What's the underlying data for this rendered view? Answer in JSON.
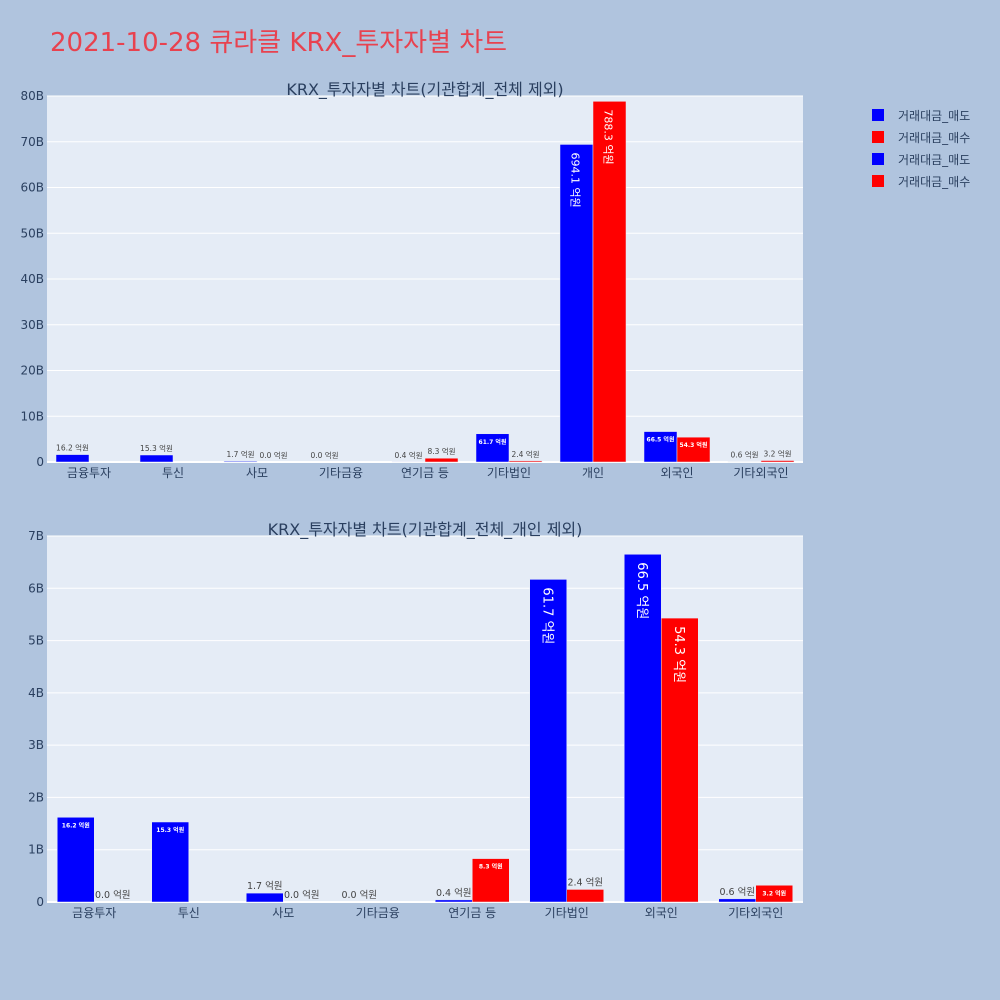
{
  "page": {
    "title": "2021-10-28 큐라클 KRX_투자자별 차트"
  },
  "legend": [
    {
      "label": "거래대금_매도",
      "color": "#0000ff"
    },
    {
      "label": "거래대금_매수",
      "color": "#ff0000"
    },
    {
      "label": "거래대금_매도",
      "color": "#0000ff"
    },
    {
      "label": "거래대금_매수",
      "color": "#ff0000"
    }
  ],
  "chart_data": [
    {
      "type": "bar",
      "title": "KRX_투자자별 차트(기관합계_전체 제외)",
      "categories": [
        "금융투자",
        "투신",
        "사모",
        "기타금융",
        "연기금 등",
        "기타법인",
        "개인",
        "외국인",
        "기타외국인"
      ],
      "ylim": [
        0,
        80
      ],
      "yticks": [
        0,
        10,
        20,
        30,
        40,
        50,
        60,
        70,
        80
      ],
      "ytick_labels": [
        "0",
        "10B",
        "20B",
        "30B",
        "40B",
        "50B",
        "60B",
        "70B",
        "80B"
      ],
      "grid": true,
      "series": [
        {
          "name": "거래대금_매도",
          "color": "#0000ff",
          "values": [
            1.62,
            1.53,
            0.17,
            0.0,
            0.04,
            6.17,
            69.41,
            6.65,
            0.06
          ],
          "labels": [
            "16.2 억원",
            "15.3 억원",
            "1.7 억원",
            "0.0 억원",
            "0.4 억원",
            "61.7 억원",
            "694.1 억원",
            "66.5 억원",
            "0.6 억원"
          ]
        },
        {
          "name": "거래대금_매수",
          "color": "#ff0000",
          "values": [
            0.0,
            0.0,
            0.0,
            0.0,
            0.83,
            0.24,
            78.83,
            5.43,
            0.32
          ],
          "labels": [
            "",
            "",
            "0.0 억원",
            "",
            "8.3 억원",
            "2.4 억원",
            "788.3 억원",
            "54.3 억원",
            "3.2 억원"
          ]
        }
      ]
    },
    {
      "type": "bar",
      "title": "KRX_투자자별 차트(기관합계_전체_개인 제외)",
      "categories": [
        "금융투자",
        "투신",
        "사모",
        "기타금융",
        "연기금 등",
        "기타법인",
        "외국인",
        "기타외국인"
      ],
      "ylim": [
        0,
        7
      ],
      "yticks": [
        0,
        1,
        2,
        3,
        4,
        5,
        6,
        7
      ],
      "ytick_labels": [
        "0",
        "1B",
        "2B",
        "3B",
        "4B",
        "5B",
        "6B",
        "7B"
      ],
      "grid": true,
      "series": [
        {
          "name": "거래대금_매도",
          "color": "#0000ff",
          "values": [
            1.62,
            1.53,
            0.17,
            0.0,
            0.04,
            6.17,
            6.65,
            0.06
          ],
          "labels": [
            "16.2 억원",
            "15.3 억원",
            "1.7 억원",
            "0.0 억원",
            "0.4 억원",
            "61.7 억원",
            "66.5 억원",
            "0.6 억원"
          ]
        },
        {
          "name": "거래대금_매수",
          "color": "#ff0000",
          "values": [
            0.0,
            0.0,
            0.0,
            0.0,
            0.83,
            0.24,
            5.43,
            0.32
          ],
          "labels": [
            "0.0 억원",
            "",
            "0.0 억원",
            "",
            "8.3 억원",
            "2.4 억원",
            "54.3 억원",
            "3.2 억원"
          ]
        }
      ]
    }
  ]
}
